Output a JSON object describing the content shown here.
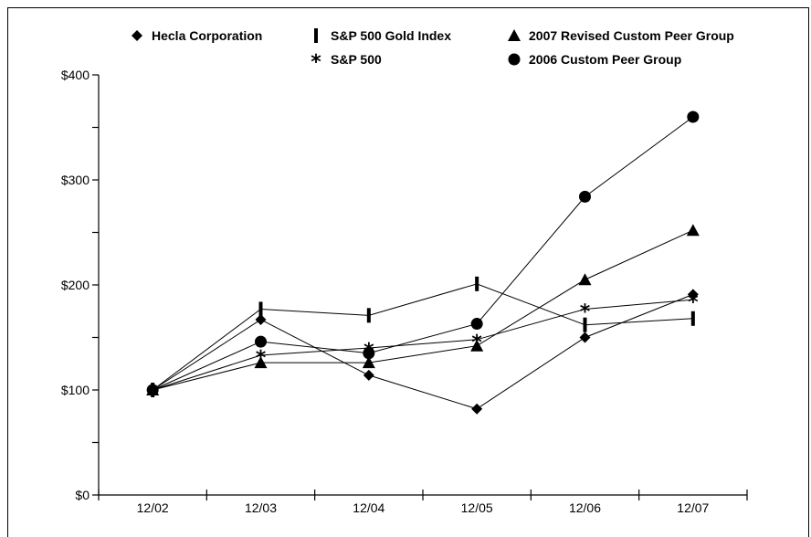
{
  "chart_data": {
    "type": "line",
    "title": "",
    "xlabel": "",
    "ylabel": "",
    "categories": [
      "12/02",
      "12/03",
      "12/04",
      "12/05",
      "12/06",
      "12/07"
    ],
    "ylim": [
      0,
      400
    ],
    "yticks": [
      "$0",
      "$100",
      "$200",
      "$300",
      "$400"
    ],
    "ytick_values": [
      0,
      100,
      200,
      300,
      400
    ],
    "grid": false,
    "legend_position": "top",
    "series": [
      {
        "name": "Hecla Corporation",
        "marker": "diamond",
        "values": [
          100,
          167,
          114,
          82,
          150,
          191
        ]
      },
      {
        "name": "S&P 500 Gold Index",
        "marker": "bar",
        "values": [
          100,
          177,
          171,
          201,
          162,
          168
        ]
      },
      {
        "name": "2007 Revised Custom Peer Group",
        "marker": "triangle",
        "values": [
          100,
          126,
          126,
          142,
          205,
          252
        ]
      },
      {
        "name": "S&P 500",
        "marker": "star",
        "values": [
          100,
          133,
          140,
          148,
          177,
          186
        ]
      },
      {
        "name": "2006 Custom Peer Group",
        "marker": "circle",
        "values": [
          100,
          146,
          135,
          163,
          284,
          360
        ]
      }
    ]
  }
}
